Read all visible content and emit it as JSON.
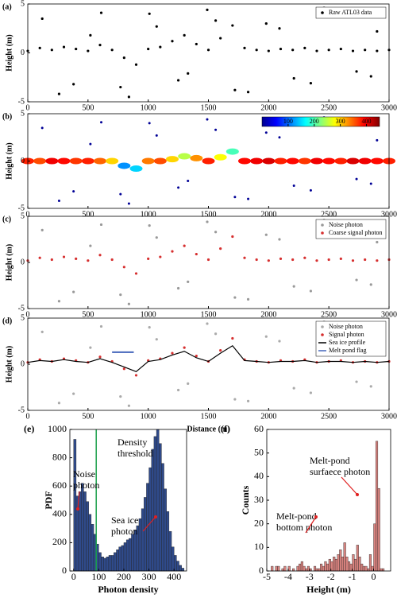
{
  "chart_data": [
    {
      "type": "scatter",
      "label": "(a)",
      "ylabel": "Height (m)",
      "xlim": [
        0,
        3000
      ],
      "ylim": [
        -5,
        5
      ],
      "xticks": [
        0,
        500,
        1000,
        1500,
        2000,
        2500,
        3000
      ],
      "yticks": [
        -5,
        0,
        5
      ],
      "series": [
        {
          "name": "Raw ATL03 data",
          "color": "#000000",
          "x": [
            0,
            100,
            200,
            300,
            400,
            500,
            600,
            700,
            800,
            900,
            1000,
            1100,
            1200,
            1300,
            1400,
            1500,
            1600,
            1700,
            1800,
            1900,
            2000,
            2100,
            2200,
            2300,
            2400,
            2500,
            2600,
            2700,
            2800,
            2900,
            3000,
            120,
            380,
            610,
            840,
            1070,
            1330,
            1490,
            1720,
            1980,
            2210,
            2460,
            2730,
            2900,
            260,
            520,
            770,
            1010,
            1250,
            1560,
            1830,
            2090,
            2350,
            2600,
            2850
          ],
          "values": [
            0.2,
            0.5,
            0.3,
            0.6,
            0.4,
            0.2,
            0.8,
            0.3,
            -0.5,
            -1.2,
            0.4,
            0.6,
            1.2,
            1.8,
            0.9,
            0.3,
            1.5,
            2.8,
            0.5,
            0.3,
            0.2,
            0.4,
            0.3,
            0.5,
            0.2,
            0.3,
            0.4,
            0.2,
            0.3,
            0.2,
            0.3,
            3.5,
            -3.2,
            4.1,
            -4.5,
            2.7,
            -2.1,
            4.4,
            -3.8,
            3,
            -2.6,
            4.6,
            -1.9,
            2.2,
            -4.2,
            1.8,
            -3.5,
            4,
            -2.8,
            3.3,
            -4,
            2.5,
            -3.1,
            3.9,
            -2.4
          ]
        }
      ]
    },
    {
      "type": "scatter",
      "label": "(b)",
      "ylabel": "Height (m)",
      "xlim": [
        0,
        3000
      ],
      "ylim": [
        -5,
        5
      ],
      "xticks": [
        0,
        500,
        1000,
        1500,
        2000,
        2500,
        3000
      ],
      "yticks": [
        -5,
        0,
        5
      ],
      "colorbar": {
        "lim": [
          0,
          450
        ],
        "ticks": [
          100,
          200,
          300,
          400
        ]
      },
      "series": [
        {
          "x": [
            0,
            100,
            200,
            300,
            400,
            500,
            600,
            700,
            800,
            900,
            1000,
            1100,
            1200,
            1300,
            1400,
            1500,
            1600,
            1700,
            1800,
            1900,
            2000,
            2100,
            2200,
            2300,
            2400,
            2500,
            2600,
            2700,
            2800,
            2900,
            3000,
            120,
            380,
            610,
            840,
            1070,
            1330,
            1490,
            1720,
            1980,
            2210,
            2460,
            2730,
            2900,
            260,
            520,
            770,
            1010,
            1250,
            1560,
            1830,
            2090,
            2350,
            2600,
            2850
          ],
          "values": [
            0,
            0,
            0,
            0,
            0,
            0,
            0,
            0,
            -0.5,
            -0.8,
            0,
            0,
            0.2,
            0.5,
            0.3,
            0,
            0.4,
            1,
            0,
            0,
            0,
            0,
            0,
            0,
            0,
            0,
            0,
            0,
            0,
            0,
            0,
            3.5,
            -3.2,
            4.1,
            -4.5,
            2.7,
            -2.1,
            4.4,
            -3.8,
            3,
            -2.6,
            4.6,
            -1.9,
            2.2,
            -4.2,
            1.8,
            -3.5,
            4,
            -2.8,
            3.3,
            -4,
            2.5,
            -3.1,
            3.9,
            -2.4
          ],
          "c": [
            380,
            360,
            400,
            390,
            370,
            380,
            350,
            300,
            120,
            150,
            340,
            360,
            300,
            250,
            330,
            380,
            280,
            200,
            390,
            400,
            410,
            380,
            390,
            370,
            400,
            390,
            380,
            410,
            400,
            390,
            380,
            10,
            10,
            10,
            10,
            10,
            10,
            10,
            10,
            10,
            10,
            10,
            10,
            10,
            10,
            10,
            10,
            10,
            10,
            10,
            10,
            10,
            10,
            10,
            10
          ]
        }
      ]
    },
    {
      "type": "scatter",
      "label": "(c)",
      "ylabel": "Height (m)",
      "xlim": [
        0,
        3000
      ],
      "ylim": [
        -5,
        5
      ],
      "xticks": [
        0,
        500,
        1000,
        1500,
        2000,
        2500,
        3000
      ],
      "yticks": [
        -5,
        0,
        5
      ],
      "series": [
        {
          "name": "Noise photon",
          "color": "#999999",
          "x": [
            120,
            380,
            610,
            840,
            1070,
            1330,
            1490,
            1720,
            1980,
            2210,
            2460,
            2730,
            2900,
            260,
            520,
            770,
            1010,
            1250,
            1560,
            1830,
            2090,
            2350,
            2600,
            2850
          ],
          "values": [
            3.5,
            -3.2,
            4.1,
            -4.5,
            2.7,
            -2.1,
            4.4,
            -3.8,
            3,
            -2.6,
            4.6,
            -1.9,
            2.2,
            -4.2,
            1.8,
            -3.5,
            4,
            -2.8,
            3.3,
            -4,
            2.5,
            -3.1,
            3.9,
            -2.4
          ]
        },
        {
          "name": "Coarse signal photon",
          "color": "#d62f2f",
          "x": [
            0,
            100,
            200,
            300,
            400,
            500,
            600,
            700,
            800,
            900,
            1000,
            1100,
            1200,
            1300,
            1400,
            1500,
            1600,
            1700,
            1800,
            1900,
            2000,
            2100,
            2200,
            2300,
            2400,
            2500,
            2600,
            2700,
            2800,
            2900,
            3000
          ],
          "values": [
            0.2,
            0.5,
            0.3,
            0.6,
            0.4,
            0.2,
            0.8,
            0.3,
            -0.5,
            -1.2,
            0.4,
            0.6,
            1.2,
            1.8,
            0.9,
            0.3,
            1.5,
            2.8,
            0.5,
            0.3,
            0.2,
            0.4,
            0.3,
            0.5,
            0.2,
            0.3,
            0.4,
            0.2,
            0.3,
            0.2,
            0.3
          ]
        }
      ]
    },
    {
      "type": "scatter",
      "label": "(d)",
      "ylabel": "Height (m)",
      "xlabel": "Distance (m)",
      "xlim": [
        0,
        3000
      ],
      "ylim": [
        -5,
        5
      ],
      "xticks": [
        0,
        500,
        1000,
        1500,
        2000,
        2500,
        3000
      ],
      "yticks": [
        -5,
        0,
        5
      ],
      "series": [
        {
          "name": "Noise photon",
          "color": "#aaaaaa",
          "x": [
            120,
            380,
            610,
            840,
            1070,
            1330,
            1490,
            1720,
            1980,
            2210,
            2460,
            2730,
            2900,
            260,
            520,
            770,
            1010,
            1250,
            1560,
            1830,
            2090,
            2350,
            2600,
            2850
          ],
          "values": [
            3.5,
            -3.2,
            4.1,
            -4.5,
            2.7,
            -2.1,
            4.4,
            -3.8,
            3,
            -2.6,
            4.6,
            -1.9,
            2.2,
            -4.2,
            1.8,
            -3.5,
            4,
            -2.8,
            3.3,
            -4,
            2.5,
            -3.1,
            3.9,
            -2.4
          ]
        },
        {
          "name": "Signal photon",
          "color": "#d62f2f",
          "x": [
            0,
            100,
            200,
            300,
            400,
            500,
            600,
            700,
            800,
            900,
            1000,
            1100,
            1200,
            1300,
            1400,
            1500,
            1600,
            1700,
            1800,
            1900,
            2000,
            2100,
            2200,
            2300,
            2400,
            2500,
            2600,
            2700,
            2800,
            2900,
            3000
          ],
          "values": [
            0.2,
            0.5,
            0.3,
            0.6,
            0.4,
            0.2,
            0.8,
            0.3,
            -0.5,
            -1.2,
            0.4,
            0.6,
            1.2,
            1.8,
            0.9,
            0.3,
            1.5,
            2.8,
            0.5,
            0.3,
            0.2,
            0.4,
            0.3,
            0.5,
            0.2,
            0.3,
            0.4,
            0.2,
            0.3,
            0.2,
            0.3
          ]
        },
        {
          "name": "Sea ice profile",
          "color": "#000000",
          "style": "line",
          "x": [
            0,
            100,
            200,
            300,
            400,
            500,
            600,
            700,
            800,
            900,
            1000,
            1100,
            1200,
            1300,
            1400,
            1500,
            1600,
            1700,
            1800,
            1900,
            2000,
            2100,
            2200,
            2300,
            2400,
            2500,
            2600,
            2700,
            2800,
            2900,
            3000
          ],
          "values": [
            0.2,
            0.4,
            0.3,
            0.5,
            0.3,
            0.2,
            0.6,
            0.2,
            -0.3,
            -0.8,
            0.3,
            0.5,
            1,
            1.4,
            0.7,
            0.3,
            1.2,
            2,
            0.4,
            0.3,
            0.2,
            0.3,
            0.3,
            0.4,
            0.2,
            0.3,
            0.3,
            0.2,
            0.3,
            0.2,
            0.3
          ]
        },
        {
          "name": "Melt pond flag",
          "color": "#4466bb",
          "style": "line",
          "x": [
            700,
            880
          ],
          "values": [
            1.3,
            1.3
          ]
        }
      ]
    },
    {
      "type": "histogram",
      "label": "(e)",
      "ylabel": "PDF",
      "xlabel": "Photon density",
      "color": "#2f4a8a",
      "xlim": [
        -15,
        450
      ],
      "ylim": [
        0,
        1000
      ],
      "xticks": [
        0,
        100,
        200,
        300,
        400
      ],
      "yticks": [
        0,
        200,
        400,
        600,
        800,
        1000
      ],
      "bins": [
        0,
        10,
        20,
        30,
        40,
        50,
        60,
        70,
        80,
        90,
        100,
        110,
        120,
        130,
        140,
        150,
        160,
        170,
        180,
        190,
        200,
        210,
        220,
        230,
        240,
        250,
        260,
        270,
        280,
        290,
        300,
        310,
        320,
        330,
        340,
        350,
        360,
        370,
        380,
        390,
        400,
        410,
        420,
        430,
        440
      ],
      "values": [
        930,
        530,
        560,
        620,
        560,
        490,
        400,
        330,
        260,
        190,
        130,
        100,
        90,
        100,
        110,
        110,
        130,
        150,
        170,
        180,
        200,
        220,
        230,
        260,
        290,
        320,
        370,
        440,
        520,
        620,
        730,
        860,
        950,
        1000,
        900,
        760,
        580,
        420,
        280,
        170,
        110,
        70,
        40,
        20
      ],
      "threshold": 90,
      "threshold_color": "#1aa04a",
      "annotations": [
        {
          "lines": [
            "Density",
            "threshold"
          ]
        },
        {
          "lines": [
            "Noise",
            "photon"
          ]
        },
        {
          "lines": [
            "Sea ice",
            "photon"
          ]
        }
      ]
    },
    {
      "type": "histogram",
      "label": "(f)",
      "ylabel": "Counts",
      "xlabel": "Height (m)",
      "color": "#d9837f",
      "xlim": [
        -5,
        0.8
      ],
      "ylim": [
        0,
        60
      ],
      "xticks": [
        -5,
        -4,
        -3,
        -2,
        -1,
        0
      ],
      "yticks": [
        0,
        10,
        20,
        30,
        40,
        50,
        60
      ],
      "bins": [
        -4.8,
        -4.7,
        -4.6,
        -4.5,
        -4.4,
        -4.3,
        -4.2,
        -4.1,
        -4,
        -3.9,
        -3.8,
        -3.7,
        -3.6,
        -3.5,
        -3.4,
        -3.3,
        -3.2,
        -3.1,
        -3,
        -2.9,
        -2.8,
        -2.7,
        -2.6,
        -2.5,
        -2.4,
        -2.3,
        -2.2,
        -2.1,
        -2,
        -1.9,
        -1.8,
        -1.7,
        -1.6,
        -1.5,
        -1.4,
        -1.3,
        -1.2,
        -1.1,
        -1,
        -0.9,
        -0.8,
        -0.7,
        -0.6,
        -0.5,
        -0.4,
        -0.3,
        -0.2,
        -0.1,
        0,
        0.1,
        0.2,
        0.3,
        0.4,
        0.5
      ],
      "values": [
        2,
        0,
        2,
        2,
        0,
        1,
        2,
        0,
        2,
        0,
        1,
        0,
        2,
        3,
        4,
        2,
        1,
        2,
        1,
        0,
        2,
        1,
        1,
        3,
        2,
        4,
        3,
        5,
        4,
        6,
        5,
        7,
        9,
        6,
        12,
        6,
        4,
        3,
        7,
        5,
        11,
        6,
        3,
        2,
        2,
        1,
        7,
        2,
        20,
        55,
        35,
        1,
        1
      ],
      "annotations": [
        {
          "lines": [
            "Melt-pond",
            "surfaece photon"
          ]
        },
        {
          "lines": [
            "Melt-pond",
            "bottom photon"
          ]
        }
      ]
    }
  ]
}
